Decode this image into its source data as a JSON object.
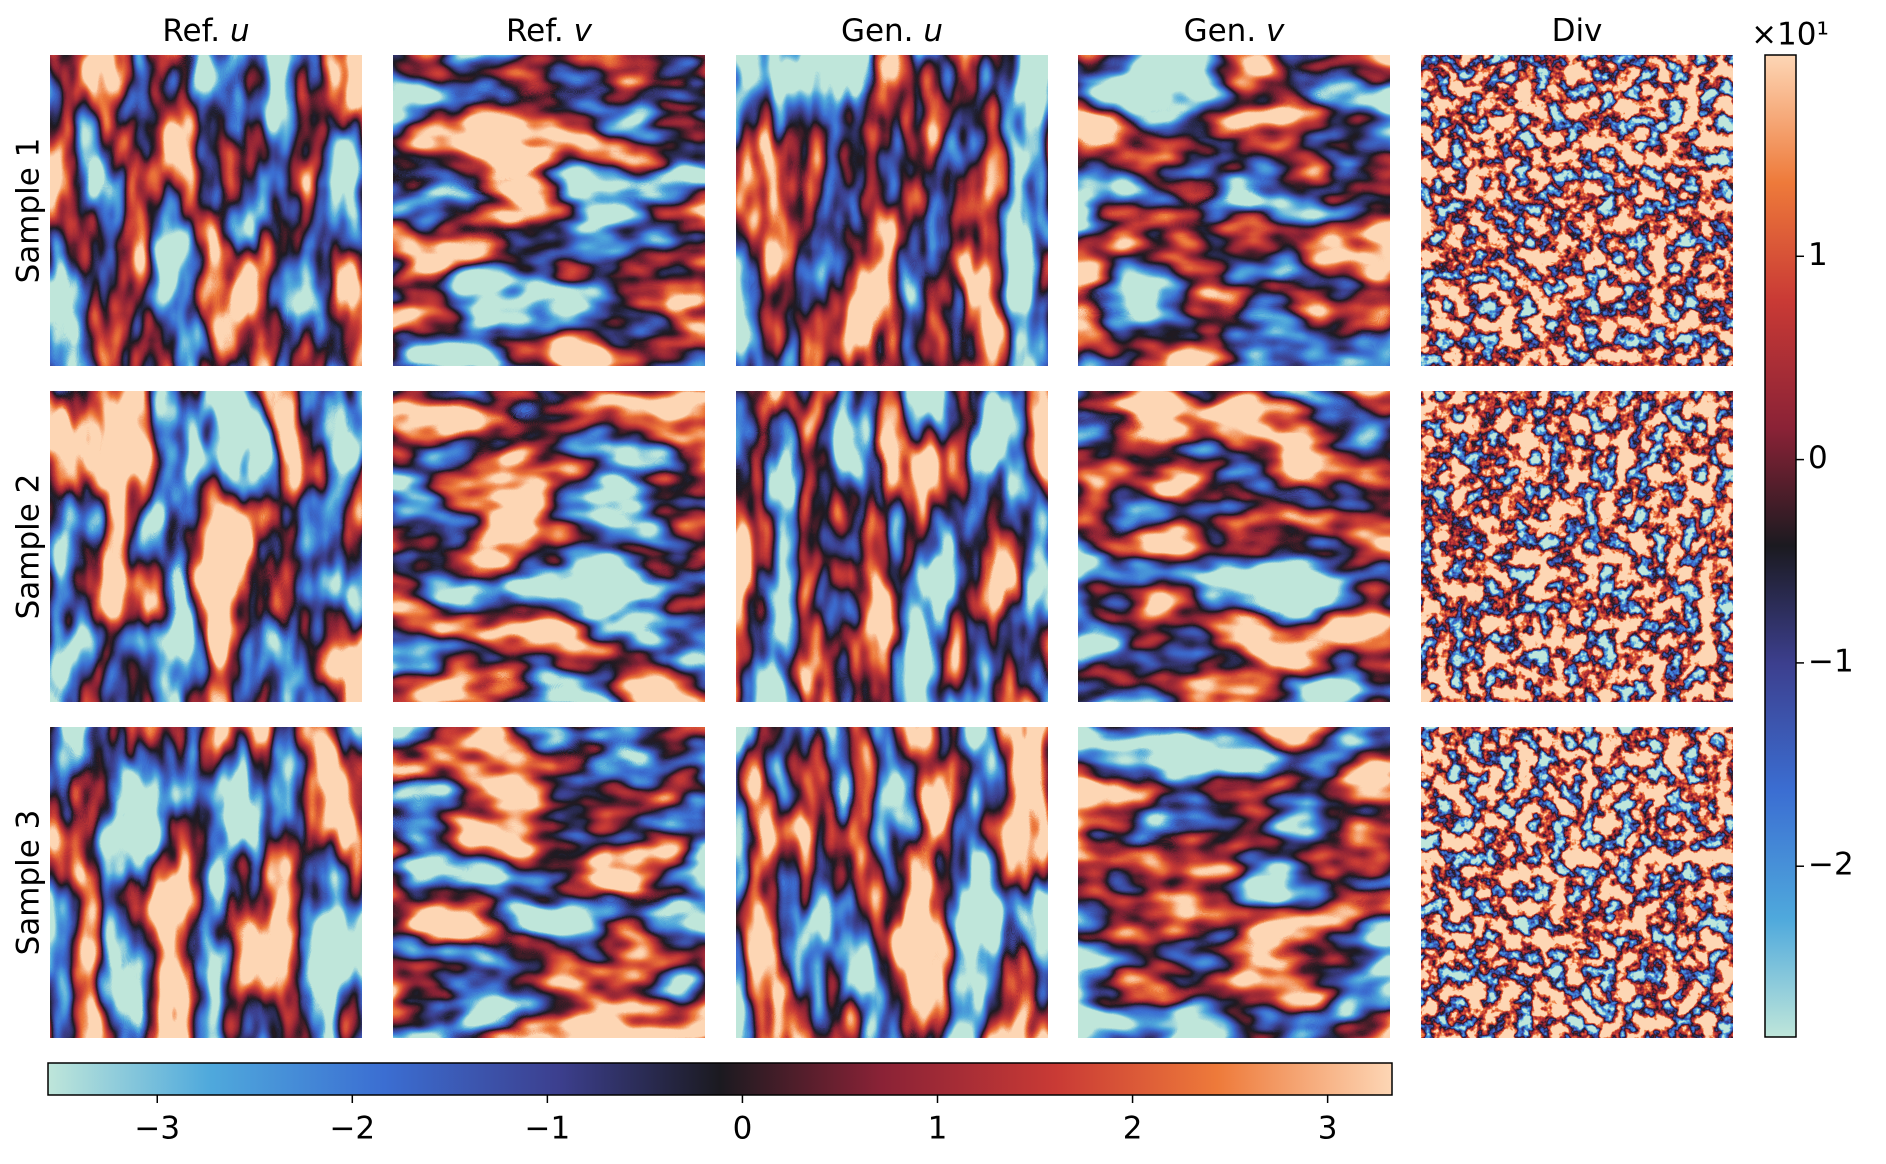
{
  "chart_data": {
    "type": "image-grid",
    "columns": [
      {
        "text": "Ref.",
        "var": "u"
      },
      {
        "text": "Ref.",
        "var": "v"
      },
      {
        "text": "Gen.",
        "var": "u"
      },
      {
        "text": "Gen.",
        "var": "v"
      },
      {
        "text": "Div"
      }
    ],
    "rows": [
      "Sample 1",
      "Sample 2",
      "Sample 3"
    ],
    "colorbar_bottom": {
      "xlim": [
        -3.56,
        3.33
      ],
      "xticks": [
        {
          "value": -3,
          "label": "−3"
        },
        {
          "value": -2,
          "label": "−2"
        },
        {
          "value": -1,
          "label": "−1"
        },
        0,
        1,
        2,
        3
      ]
    },
    "colorbar_right": {
      "ylim": [
        -2.84,
        1.99
      ],
      "yticks": [
        {
          "value": -2,
          "label": "−2"
        },
        {
          "value": -1,
          "label": "−1"
        },
        0,
        1
      ],
      "offset_label": "×10¹"
    }
  }
}
